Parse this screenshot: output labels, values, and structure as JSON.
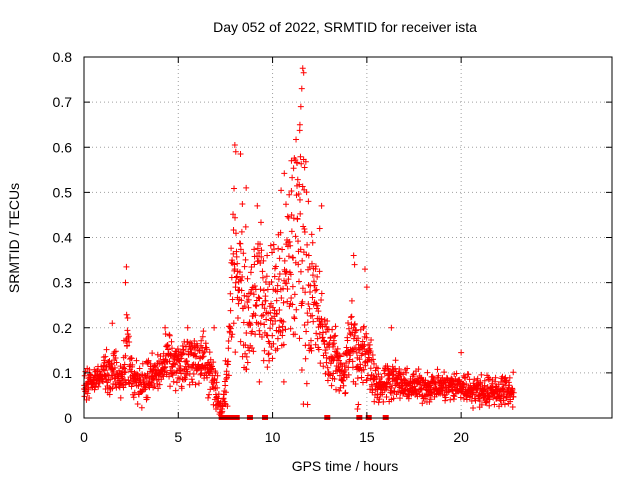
{
  "chart_data": {
    "type": "scatter",
    "title": "Day 052 of 2022, SRMTID for receiver ista",
    "xlabel": "GPS time / hours",
    "ylabel": "SRMTID / TECUs",
    "xlim": [
      0,
      28
    ],
    "ylim": [
      0,
      0.8
    ],
    "xticks": [
      0,
      5,
      10,
      15,
      20
    ],
    "xtick_labels": [
      "0",
      "5",
      "10",
      "15",
      "20"
    ],
    "yticks": [
      0,
      0.1,
      0.2,
      0.3,
      0.4,
      0.5,
      0.6,
      0.7,
      0.8
    ],
    "ytick_labels": [
      "0",
      "0.1",
      "0.2",
      "0.3",
      "0.4",
      "0.5",
      "0.6",
      "0.7",
      "0.8"
    ],
    "grid": true,
    "marker": "plus",
    "color": "#ff0000",
    "envelope": {
      "hours": [
        0.0,
        0.5,
        1.0,
        1.5,
        2.0,
        2.3,
        2.6,
        3.0,
        3.5,
        4.0,
        4.5,
        5.0,
        5.5,
        6.0,
        6.5,
        7.0,
        7.3,
        7.6,
        8.0,
        8.3,
        8.7,
        9.2,
        9.7,
        10.2,
        10.7,
        11.2,
        11.5,
        11.8,
        12.3,
        12.8,
        13.3,
        13.8,
        14.2,
        14.6,
        15.0,
        15.3,
        15.7,
        16.2,
        17.0,
        18.0,
        19.0,
        20.0,
        21.0,
        22.0,
        22.8
      ],
      "center": [
        0.07,
        0.08,
        0.1,
        0.11,
        0.09,
        0.17,
        0.08,
        0.08,
        0.09,
        0.1,
        0.13,
        0.11,
        0.12,
        0.14,
        0.12,
        0.06,
        0.01,
        0.1,
        0.38,
        0.3,
        0.22,
        0.32,
        0.22,
        0.26,
        0.3,
        0.4,
        0.42,
        0.3,
        0.24,
        0.16,
        0.13,
        0.1,
        0.18,
        0.12,
        0.16,
        0.1,
        0.07,
        0.09,
        0.07,
        0.07,
        0.07,
        0.07,
        0.06,
        0.06,
        0.06
      ],
      "spread": [
        0.03,
        0.03,
        0.04,
        0.05,
        0.04,
        0.08,
        0.04,
        0.04,
        0.04,
        0.04,
        0.05,
        0.05,
        0.05,
        0.05,
        0.05,
        0.05,
        0.01,
        0.06,
        0.16,
        0.15,
        0.14,
        0.13,
        0.14,
        0.16,
        0.2,
        0.25,
        0.28,
        0.2,
        0.12,
        0.07,
        0.06,
        0.05,
        0.1,
        0.06,
        0.08,
        0.05,
        0.04,
        0.04,
        0.03,
        0.03,
        0.03,
        0.03,
        0.03,
        0.03,
        0.03
      ]
    },
    "points": [
      {
        "x": 2.25,
        "y": 0.335
      },
      {
        "x": 2.2,
        "y": 0.3
      },
      {
        "x": 8.0,
        "y": 0.605
      },
      {
        "x": 8.05,
        "y": 0.59
      },
      {
        "x": 8.3,
        "y": 0.585
      },
      {
        "x": 8.6,
        "y": 0.51
      },
      {
        "x": 11.6,
        "y": 0.775
      },
      {
        "x": 11.65,
        "y": 0.765
      },
      {
        "x": 11.55,
        "y": 0.73
      },
      {
        "x": 11.5,
        "y": 0.69
      },
      {
        "x": 11.45,
        "y": 0.65
      },
      {
        "x": 11.0,
        "y": 0.57
      },
      {
        "x": 11.3,
        "y": 0.565
      },
      {
        "x": 11.7,
        "y": 0.555
      },
      {
        "x": 11.9,
        "y": 0.48
      },
      {
        "x": 12.6,
        "y": 0.47
      },
      {
        "x": 12.5,
        "y": 0.42
      },
      {
        "x": 14.3,
        "y": 0.36
      },
      {
        "x": 14.35,
        "y": 0.34
      },
      {
        "x": 14.9,
        "y": 0.33
      },
      {
        "x": 15.0,
        "y": 0.29
      },
      {
        "x": 16.3,
        "y": 0.2
      },
      {
        "x": 1.5,
        "y": 0.21
      },
      {
        "x": 4.3,
        "y": 0.2
      },
      {
        "x": 5.5,
        "y": 0.2
      },
      {
        "x": 6.3,
        "y": 0.18
      },
      {
        "x": 6.9,
        "y": 0.2
      },
      {
        "x": 20.0,
        "y": 0.145
      },
      {
        "x": 7.0,
        "y": 0.02
      },
      {
        "x": 7.1,
        "y": 0.03
      },
      {
        "x": 14.5,
        "y": 0.02
      },
      {
        "x": 14.55,
        "y": 0.03
      },
      {
        "x": 10.6,
        "y": 0.08
      },
      {
        "x": 9.3,
        "y": 0.08
      }
    ],
    "zero_points": [
      7.3,
      7.4,
      7.5,
      7.6,
      7.9,
      8.1,
      8.8,
      9.6,
      12.9,
      14.6,
      15.1,
      16.0
    ]
  }
}
